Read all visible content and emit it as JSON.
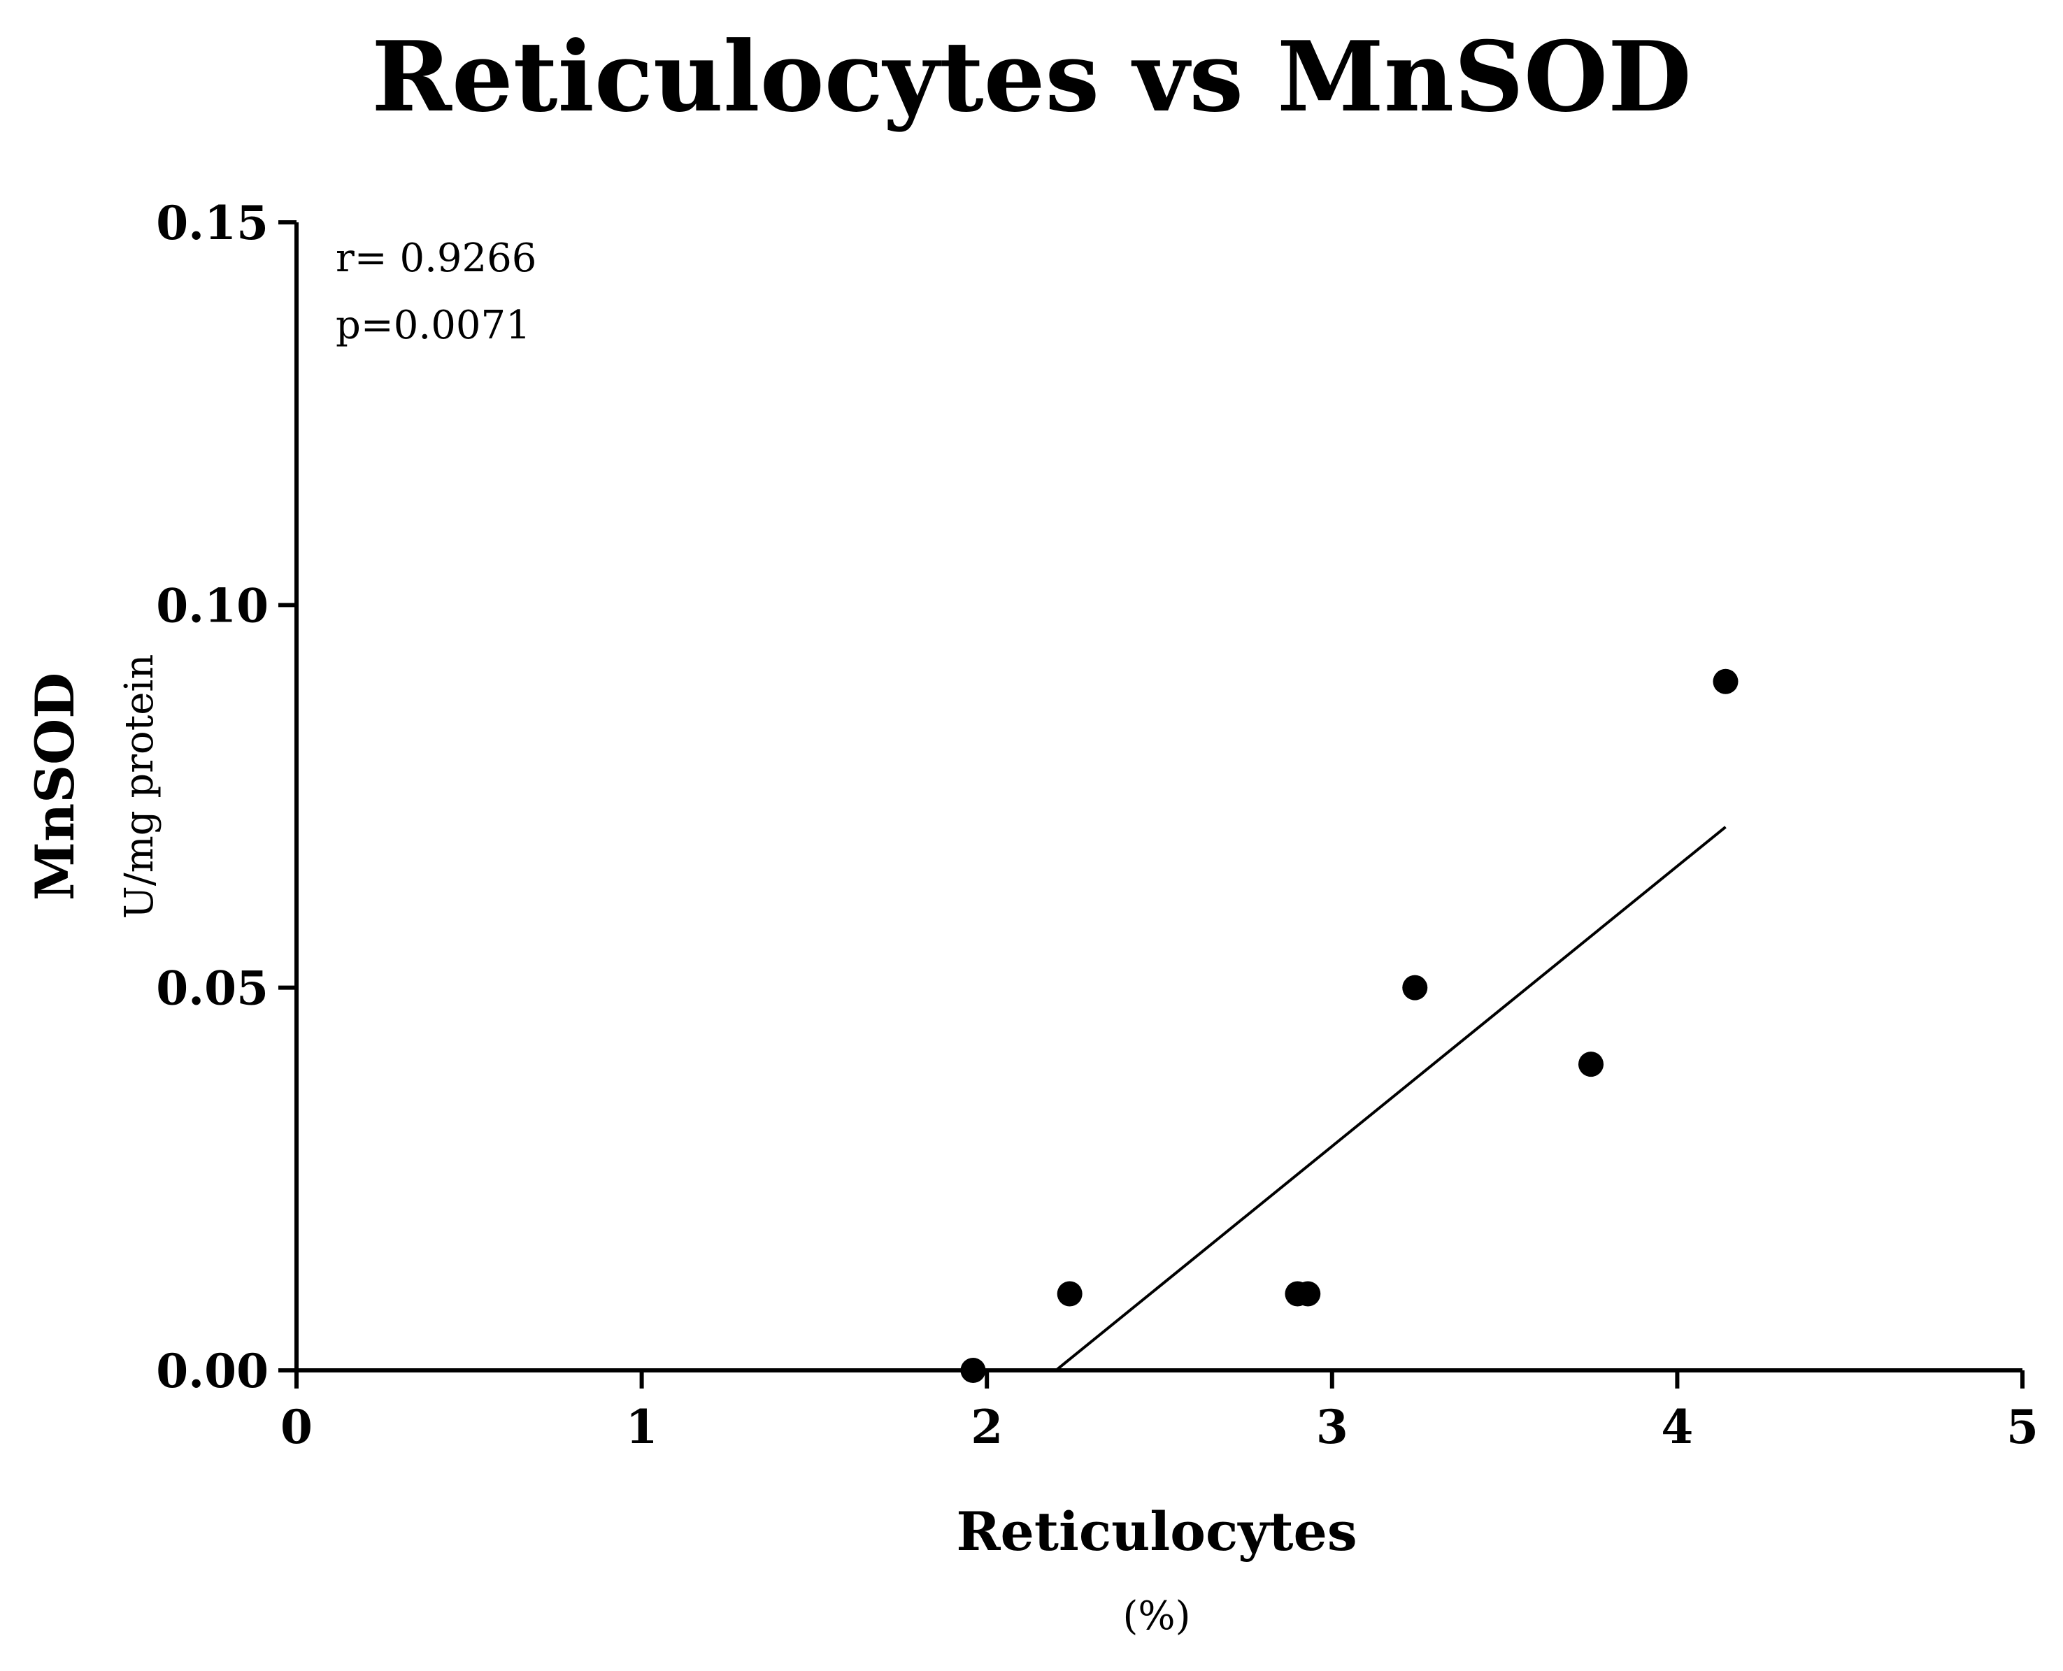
{
  "chart_data": {
    "type": "scatter",
    "title": "Reticulocytes vs MnSOD",
    "xlabel": "Reticulocytes",
    "xlabel_unit": "(%)",
    "ylabel": "MnSOD",
    "ylabel_unit": "U/mg protein",
    "xlim": [
      0,
      5
    ],
    "ylim": [
      0,
      0.15
    ],
    "x_ticks": [
      0,
      1,
      2,
      3,
      4,
      5
    ],
    "x_tick_labels": [
      "0",
      "1",
      "2",
      "3",
      "4",
      "5"
    ],
    "y_ticks": [
      0,
      0.05,
      0.1,
      0.15
    ],
    "y_tick_labels": [
      "0.00",
      "0.05",
      "0.10",
      "0.15"
    ],
    "grid": false,
    "points": [
      {
        "x": 1.96,
        "y": 0.0
      },
      {
        "x": 2.24,
        "y": 0.01
      },
      {
        "x": 2.9,
        "y": 0.01
      },
      {
        "x": 2.93,
        "y": 0.01
      },
      {
        "x": 3.24,
        "y": 0.05
      },
      {
        "x": 3.75,
        "y": 0.04
      },
      {
        "x": 4.14,
        "y": 0.09
      }
    ],
    "regression_line": {
      "x": [
        2.2,
        4.14
      ],
      "y": [
        0.0,
        0.071
      ]
    },
    "annotations": {
      "r_text": "r= 0.9266",
      "p_text": "p=0.0071"
    }
  }
}
